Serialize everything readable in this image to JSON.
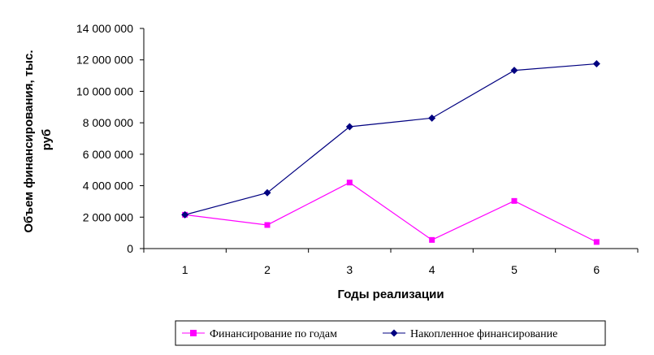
{
  "chart_data": {
    "type": "line",
    "categories": [
      "1",
      "2",
      "3",
      "4",
      "5",
      "6"
    ],
    "series": [
      {
        "name": "Финансирование по годам",
        "values": [
          2150000,
          1500000,
          4200000,
          550000,
          3030000,
          420000
        ],
        "color": "#ff00ff",
        "marker": "square"
      },
      {
        "name": "Накопленное финансирование",
        "values": [
          2150000,
          3550000,
          7750000,
          8300000,
          11330000,
          11750000
        ],
        "color": "#000080",
        "marker": "diamond"
      }
    ],
    "xlabel": "Годы реализации",
    "ylabel_line1": "Объем финансирования, тыс.",
    "ylabel_line2": "руб",
    "ylim": [
      0,
      14000000
    ],
    "yticks": [
      0,
      2000000,
      4000000,
      6000000,
      8000000,
      10000000,
      12000000,
      14000000
    ],
    "ytick_labels": [
      "0",
      "2 000 000",
      "4 000 000",
      "6 000 000",
      "8 000 000",
      "10 000 000",
      "12 000 000",
      "14 000 000"
    ],
    "grid": false,
    "legend_position": "bottom"
  }
}
